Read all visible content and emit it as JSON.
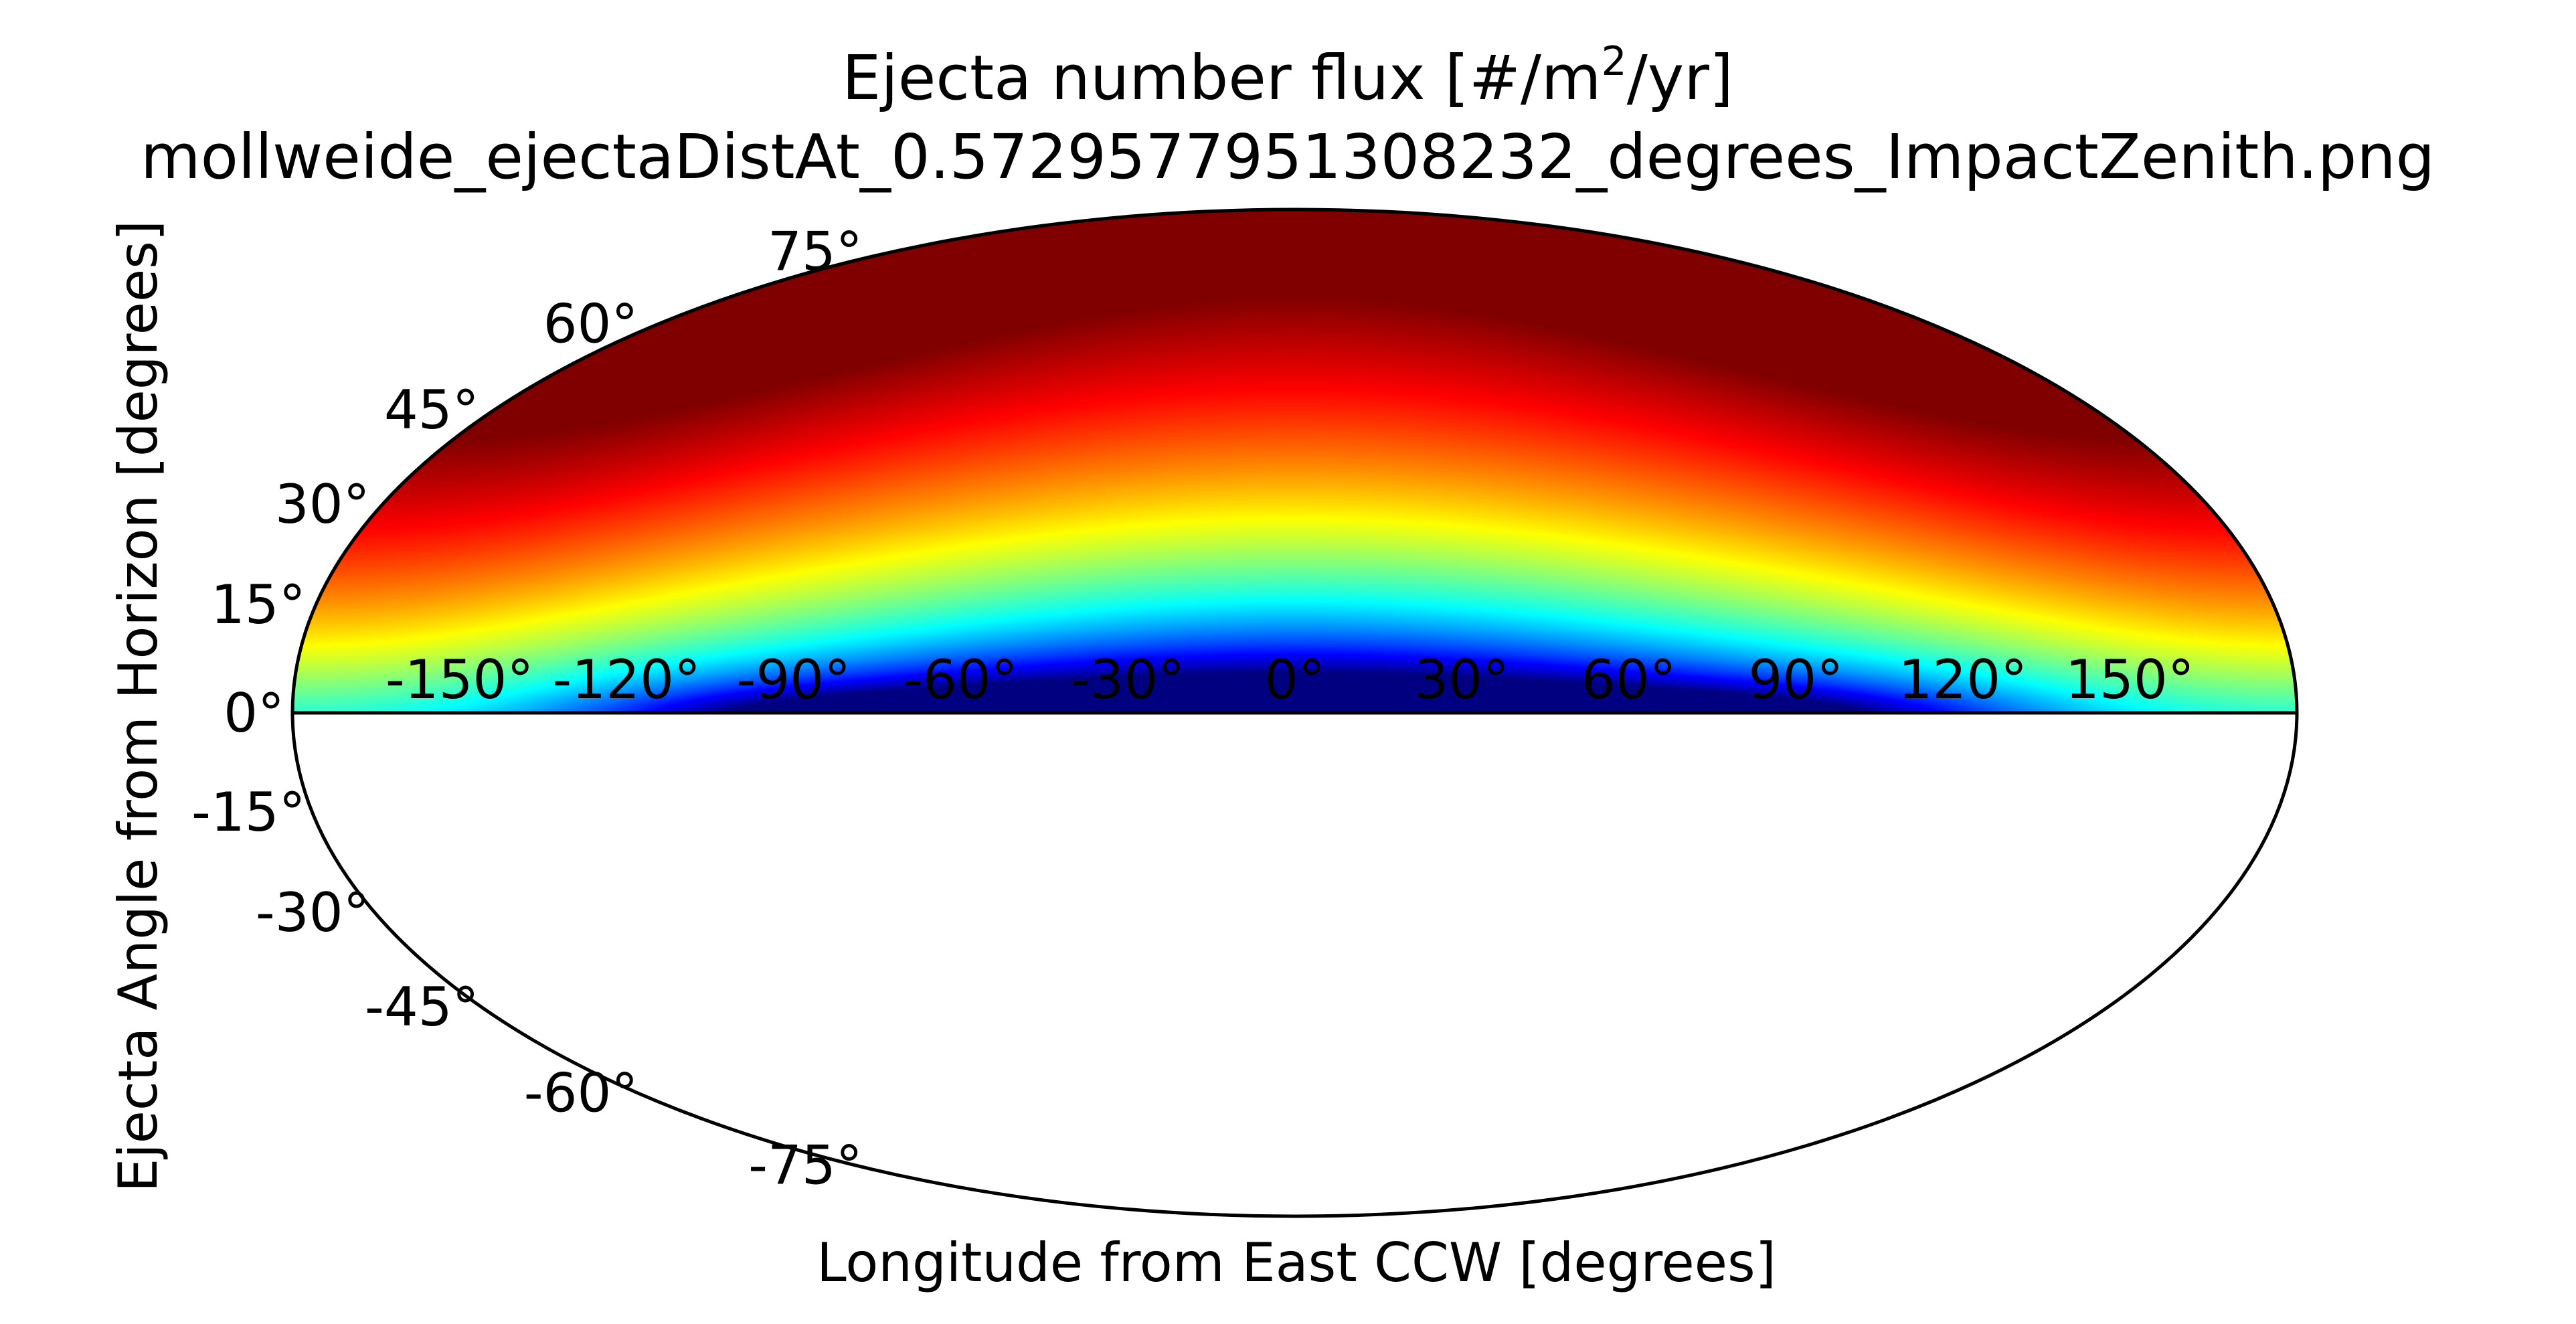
{
  "chart_data": {
    "type": "heatmap",
    "projection": "mollweide",
    "title": "Ejecta number flux [#/m",
    "title_superscript": "2",
    "title_suffix": "/yr]",
    "subtitle": "mollweide_ejectaDistAt_0.5729577951308232_degrees_ImpactZenith.png",
    "xlabel": "Longitude from East CCW [degrees]",
    "ylabel": "Ejecta Angle from Horizon [degrees]",
    "colormap": "jet",
    "xlim": [
      -180,
      180
    ],
    "ylim": [
      -90,
      90
    ],
    "data_extent_y": [
      0,
      90
    ],
    "x_ticks": [
      {
        "value": -150,
        "label": "-150°"
      },
      {
        "value": -120,
        "label": "-120°"
      },
      {
        "value": -90,
        "label": "-90°"
      },
      {
        "value": -60,
        "label": "-60°"
      },
      {
        "value": -30,
        "label": "-30°"
      },
      {
        "value": 0,
        "label": "0°"
      },
      {
        "value": 30,
        "label": "30°"
      },
      {
        "value": 60,
        "label": "60°"
      },
      {
        "value": 90,
        "label": "90°"
      },
      {
        "value": 120,
        "label": "120°"
      },
      {
        "value": 150,
        "label": "150°"
      }
    ],
    "y_ticks": [
      {
        "value": 75,
        "label": "75°"
      },
      {
        "value": 60,
        "label": "60°"
      },
      {
        "value": 45,
        "label": "45°"
      },
      {
        "value": 30,
        "label": "30°"
      },
      {
        "value": 15,
        "label": "15°"
      },
      {
        "value": 0,
        "label": "0°"
      },
      {
        "value": -15,
        "label": "-15°"
      },
      {
        "value": -30,
        "label": "-30°"
      },
      {
        "value": -45,
        "label": "-45°"
      },
      {
        "value": -60,
        "label": "-60°"
      },
      {
        "value": -75,
        "label": "-75°"
      }
    ],
    "grid": false,
    "colors": {
      "background": "#ffffff",
      "outline": "#000000",
      "colormap_low": "#00007f",
      "colormap_high": "#7f0000"
    }
  }
}
